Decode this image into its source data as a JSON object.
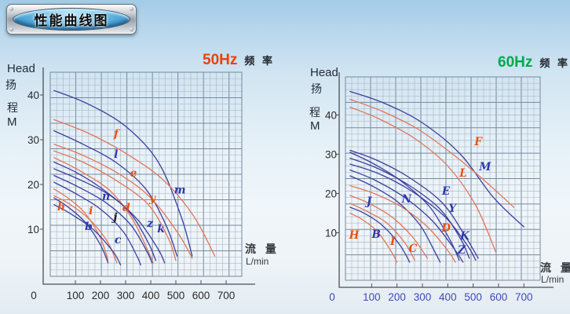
{
  "badge": {
    "title": "性能曲线图"
  },
  "chart_data": [
    {
      "type": "line",
      "frequency": "50Hz",
      "title_color": "#e8430d",
      "freq_suffix": "频 率",
      "ylabel": {
        "en": "Head",
        "cn1": "扬",
        "cn2": "程",
        "unit": "M"
      },
      "xlabel": {
        "cn": "流 量",
        "unit": "L/min"
      },
      "x_ticks": [
        0,
        100,
        200,
        300,
        400,
        500,
        600,
        700
      ],
      "y_ticks": [
        40,
        30,
        20,
        10
      ],
      "x_tick_color": "#2b2b2b",
      "y_tick_color": "#2b2b2b",
      "x_range": [
        0,
        760
      ],
      "y_range": [
        0,
        45
      ],
      "grid": true,
      "legend": "none",
      "palette": {
        "blue": "#3c3f9e",
        "orange": "#e2765a"
      },
      "label_palette": {
        "blue": "#2c38ae",
        "orange": "#e8500f",
        "black": "#1d1d1d"
      },
      "series": [
        {
          "name": "m",
          "color": "blue",
          "label_color": "blue",
          "label_at": [
            516,
            18.9
          ],
          "points": [
            [
              15,
              41
            ],
            [
              150,
              38
            ],
            [
              300,
              33
            ],
            [
              430,
              25
            ],
            [
              520,
              13
            ],
            [
              565,
              4
            ]
          ]
        },
        {
          "name": "f",
          "color": "orange",
          "label_color": "orange",
          "label_at": [
            262,
            31.4
          ],
          "points": [
            [
              15,
              34.5
            ],
            [
              150,
              31.5
            ],
            [
              300,
              27
            ],
            [
              450,
              21
            ],
            [
              570,
              13
            ],
            [
              655,
              4
            ]
          ]
        },
        {
          "name": "l",
          "color": "blue",
          "label_color": "blue",
          "label_at": [
            262,
            26.8
          ],
          "points": [
            [
              15,
              32
            ],
            [
              130,
              29
            ],
            [
              260,
              25
            ],
            [
              380,
              19
            ],
            [
              460,
              11
            ],
            [
              505,
              4
            ]
          ]
        },
        {
          "name": "e",
          "color": "orange",
          "label_color": "orange",
          "label_at": [
            331,
            22.6
          ],
          "points": [
            [
              15,
              29
            ],
            [
              130,
              26.5
            ],
            [
              270,
              22.5
            ],
            [
              400,
              17
            ],
            [
              510,
              9
            ],
            [
              565,
              3.5
            ]
          ]
        },
        {
          "name": "y",
          "color": "orange",
          "label_color": "orange",
          "label_at": [
            406,
            17.0
          ],
          "points": [
            [
              15,
              27.5
            ],
            [
              130,
              25
            ],
            [
              260,
              21
            ],
            [
              390,
              15.5
            ],
            [
              470,
              8
            ],
            [
              500,
              3
            ]
          ]
        },
        {
          "name": "d",
          "color": "orange",
          "label_color": "orange",
          "label_at": [
            303,
            14.9
          ],
          "points": [
            [
              15,
              26
            ],
            [
              120,
              23
            ],
            [
              240,
              18.5
            ],
            [
              330,
              12
            ],
            [
              390,
              5
            ],
            [
              410,
              2.5
            ]
          ]
        },
        {
          "name": "n",
          "color": "blue",
          "label_color": "blue",
          "label_at": [
            222,
            17.5
          ],
          "points": [
            [
              15,
              25
            ],
            [
              110,
              22.5
            ],
            [
              220,
              18.5
            ],
            [
              320,
              13.5
            ],
            [
              390,
              7
            ],
            [
              420,
              3
            ]
          ]
        },
        {
          "name": "k",
          "color": "blue",
          "label_color": "blue",
          "label_at": [
            441,
            10.2
          ],
          "points": [
            [
              15,
              23.5
            ],
            [
              120,
              21
            ],
            [
              240,
              17.5
            ],
            [
              350,
              12
            ],
            [
              430,
              5.5
            ],
            [
              455,
              2.5
            ]
          ]
        },
        {
          "name": "z",
          "color": "blue",
          "label_color": "blue",
          "label_at": [
            397,
            11.4
          ],
          "points": [
            [
              15,
              22
            ],
            [
              110,
              19.5
            ],
            [
              220,
              16
            ],
            [
              320,
              11
            ],
            [
              385,
              5
            ],
            [
              405,
              2.5
            ]
          ]
        },
        {
          "name": "j",
          "color": "blue",
          "label_color": "black",
          "label_at": [
            259,
            12.8
          ],
          "points": [
            [
              15,
              20.5
            ],
            [
              100,
              18
            ],
            [
              200,
              14.5
            ],
            [
              290,
              9.5
            ],
            [
              345,
              4
            ],
            [
              360,
              2
            ]
          ]
        },
        {
          "name": "h",
          "color": "orange",
          "label_color": "orange",
          "label_at": [
            44,
            15.1
          ],
          "points": [
            [
              15,
              19
            ],
            [
              70,
              17
            ],
            [
              140,
              13.5
            ],
            [
              200,
              8
            ],
            [
              230,
              3
            ]
          ]
        },
        {
          "name": "i",
          "color": "orange",
          "label_color": "orange",
          "label_at": [
            162,
            14.2
          ],
          "points": [
            [
              15,
              17.5
            ],
            [
              80,
              15.5
            ],
            [
              160,
              12
            ],
            [
              230,
              7
            ],
            [
              265,
              2.5
            ]
          ]
        },
        {
          "name": "b",
          "color": "blue",
          "label_color": "blue",
          "label_at": [
            153,
            10.7
          ],
          "points": [
            [
              15,
              17
            ],
            [
              70,
              15
            ],
            [
              140,
              11.5
            ],
            [
              200,
              6.5
            ],
            [
              230,
              2.5
            ]
          ]
        },
        {
          "name": "c",
          "color": "blue",
          "label_color": "blue",
          "label_at": [
            269,
            7.7
          ],
          "points": [
            [
              15,
              15.5
            ],
            [
              80,
              13.5
            ],
            [
              170,
              10
            ],
            [
              250,
              5
            ],
            [
              280,
              2
            ]
          ]
        }
      ]
    },
    {
      "type": "line",
      "frequency": "60Hz",
      "title_color": "#00a94f",
      "freq_suffix": "频 率",
      "ylabel": {
        "en": "Head",
        "cn1": "扬",
        "cn2": "程",
        "unit": "M"
      },
      "xlabel": {
        "cn": "流 量",
        "unit": "L/min"
      },
      "x_ticks": [
        0,
        100,
        200,
        300,
        400,
        500,
        600,
        700
      ],
      "y_ticks": [
        40,
        30,
        20,
        10
      ],
      "x_tick_color": "#3f4ab8",
      "y_tick_color": "#2b2b2b",
      "x_range": [
        0,
        765
      ],
      "y_range": [
        0,
        50
      ],
      "grid": true,
      "legend": "none",
      "palette": {
        "blue": "#3c3f9e",
        "orange": "#e2765a"
      },
      "label_palette": {
        "blue": "#2c38ae",
        "orange": "#e8500f",
        "black": "#1d1d1d"
      },
      "series": [
        {
          "name": "M",
          "color": "blue",
          "label_color": "blue",
          "label_at": [
            547,
            26.9
          ],
          "points": [
            [
              15,
              46
            ],
            [
              150,
              43
            ],
            [
              300,
              38
            ],
            [
              450,
              30
            ],
            [
              580,
              19
            ],
            [
              700,
              11.5
            ]
          ]
        },
        {
          "name": "F",
          "color": "orange",
          "label_color": "orange",
          "label_at": [
            520,
            33.3
          ],
          "points": [
            [
              15,
              44
            ],
            [
              140,
              41
            ],
            [
              280,
              36.5
            ],
            [
              420,
              30
            ],
            [
              550,
              23
            ],
            [
              660,
              16.5
            ]
          ]
        },
        {
          "name": "L",
          "color": "orange",
          "label_color": "orange",
          "label_at": [
            461,
            25.3
          ],
          "points": [
            [
              15,
              42
            ],
            [
              130,
              39
            ],
            [
              270,
              34
            ],
            [
              400,
              27
            ],
            [
              510,
              17
            ],
            [
              590,
              5
            ]
          ]
        },
        {
          "name": "E",
          "color": "blue",
          "label_color": "blue",
          "label_at": [
            393,
            20.7
          ],
          "points": [
            [
              15,
              31
            ],
            [
              120,
              28.5
            ],
            [
              250,
              24
            ],
            [
              380,
              17.5
            ],
            [
              470,
              9
            ],
            [
              520,
              3.5
            ]
          ]
        },
        {
          "name": "N",
          "color": "blue",
          "label_color": "blue",
          "label_at": [
            238,
            18.7
          ],
          "points": [
            [
              15,
              30.5
            ],
            [
              110,
              27.5
            ],
            [
              220,
              23
            ],
            [
              330,
              16.5
            ],
            [
              410,
              8
            ],
            [
              445,
              3
            ]
          ]
        },
        {
          "name": "Y",
          "color": "blue",
          "label_color": "blue",
          "label_at": [
            418,
            16.3
          ],
          "points": [
            [
              15,
              29
            ],
            [
              120,
              26.5
            ],
            [
              250,
              22
            ],
            [
              370,
              16
            ],
            [
              450,
              8.5
            ],
            [
              485,
              3.5
            ]
          ]
        },
        {
          "name": "K",
          "color": "blue",
          "label_color": "blue",
          "label_at": [
            467,
            9.3
          ],
          "points": [
            [
              15,
              27.5
            ],
            [
              130,
              25
            ],
            [
              260,
              20.5
            ],
            [
              390,
              14
            ],
            [
              480,
              6.5
            ],
            [
              510,
              3
            ]
          ]
        },
        {
          "name": "Z",
          "color": "blue",
          "label_color": "blue",
          "label_at": [
            455,
            5.7
          ],
          "points": [
            [
              15,
              26
            ],
            [
              110,
              23.5
            ],
            [
              230,
              19
            ],
            [
              340,
              13
            ],
            [
              430,
              5.5
            ],
            [
              460,
              2.5
            ]
          ]
        },
        {
          "name": "J",
          "color": "blue",
          "label_color": "blue",
          "label_at": [
            90,
            18.1
          ],
          "points": [
            [
              15,
              24.5
            ],
            [
              100,
              22
            ],
            [
              200,
              18
            ],
            [
              290,
              12
            ],
            [
              350,
              5
            ],
            [
              370,
              2.5
            ]
          ]
        },
        {
          "name": "D",
          "color": "orange",
          "label_color": "orange",
          "label_at": [
            393,
            11.3
          ],
          "points": [
            [
              15,
              22
            ],
            [
              110,
              20
            ],
            [
              220,
              16.5
            ],
            [
              320,
              11.5
            ],
            [
              400,
              5.5
            ],
            [
              430,
              2.5
            ]
          ]
        },
        {
          "name": "C",
          "color": "orange",
          "label_color": "orange",
          "label_at": [
            263,
            6.1
          ],
          "points": [
            [
              15,
              19.5
            ],
            [
              90,
              17.5
            ],
            [
              180,
              14
            ],
            [
              260,
              9
            ],
            [
              320,
              3.5
            ]
          ]
        },
        {
          "name": "I",
          "color": "orange",
          "label_color": "orange",
          "label_at": [
            183,
            7.9
          ],
          "points": [
            [
              15,
              17.5
            ],
            [
              80,
              15.5
            ],
            [
              160,
              12.5
            ],
            [
              230,
              7.5
            ],
            [
              270,
              3
            ]
          ]
        },
        {
          "name": "B",
          "color": "blue",
          "label_color": "blue",
          "label_at": [
            118,
            9.7
          ],
          "points": [
            [
              15,
              16.5
            ],
            [
              70,
              15
            ],
            [
              140,
              12
            ],
            [
              210,
              7
            ],
            [
              250,
              2.5
            ]
          ]
        },
        {
          "name": "H",
          "color": "orange",
          "label_color": "orange",
          "label_at": [
            31,
            9.5
          ],
          "points": [
            [
              15,
              15
            ],
            [
              60,
              13.5
            ],
            [
              120,
              10.5
            ],
            [
              170,
              6
            ],
            [
              200,
              2.5
            ]
          ]
        }
      ]
    }
  ]
}
